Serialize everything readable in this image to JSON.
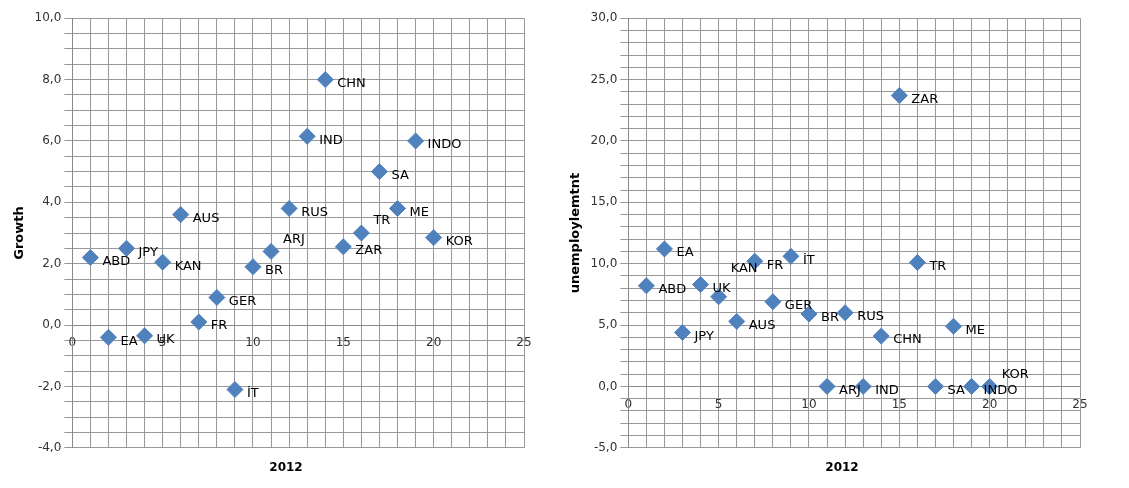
{
  "chart_data": [
    {
      "type": "scatter",
      "xlabel": "2012",
      "ylabel": "Growth",
      "marker": "diamond",
      "grid": true,
      "legend": false,
      "x": [
        1,
        2,
        3,
        4,
        5,
        6,
        7,
        8,
        9,
        10,
        11,
        12,
        13,
        14,
        15,
        16,
        17,
        18,
        19,
        20
      ],
      "series": [
        {
          "color": "#4f81bd",
          "values": [
            2.2,
            -0.4,
            2.5,
            -0.35,
            2.05,
            3.6,
            0.1,
            0.9,
            -2.1,
            1.9,
            2.4,
            3.8,
            6.15,
            8.0,
            2.55,
            3.0,
            5.0,
            3.8,
            6.0,
            2.85
          ]
        }
      ],
      "xlim": [
        0,
        25
      ],
      "xticks": [
        0,
        {
          "value": 1,
          "label": null
        },
        {
          "value": 2,
          "label": null
        },
        {
          "value": 3,
          "label": null
        },
        {
          "value": 4,
          "label": null
        },
        5,
        {
          "value": 6,
          "label": null
        },
        {
          "value": 7,
          "label": null
        },
        {
          "value": 8,
          "label": null
        },
        {
          "value": 9,
          "label": null
        },
        10,
        {
          "value": 11,
          "label": null
        },
        {
          "value": 12,
          "label": null
        },
        {
          "value": 13,
          "label": null
        },
        {
          "value": 14,
          "label": null
        },
        15,
        {
          "value": 16,
          "label": null
        },
        {
          "value": 17,
          "label": null
        },
        {
          "value": 18,
          "label": null
        },
        {
          "value": 19,
          "label": null
        },
        20,
        {
          "value": 21,
          "label": null
        },
        {
          "value": 22,
          "label": null
        },
        {
          "value": 23,
          "label": null
        },
        {
          "value": 24,
          "label": null
        },
        25
      ],
      "ylim": [
        -4,
        10
      ],
      "yticks": [
        {
          "value": -4,
          "label": "-4,0"
        },
        {
          "value": -3.5,
          "label": null
        },
        {
          "value": -3,
          "label": null
        },
        {
          "value": -2.5,
          "label": null
        },
        {
          "value": -2,
          "label": "-2,0"
        },
        {
          "value": -1.5,
          "label": null
        },
        {
          "value": -1,
          "label": null
        },
        {
          "value": -0.5,
          "label": null
        },
        {
          "value": 0,
          "label": "0,0"
        },
        {
          "value": 0.5,
          "label": null
        },
        {
          "value": 1,
          "label": null
        },
        {
          "value": 1.5,
          "label": null
        },
        {
          "value": 2,
          "label": "2,0"
        },
        {
          "value": 2.5,
          "label": null
        },
        {
          "value": 3,
          "label": null
        },
        {
          "value": 3.5,
          "label": null
        },
        {
          "value": 4,
          "label": "4,0"
        },
        {
          "value": 4.5,
          "label": null
        },
        {
          "value": 5,
          "label": null
        },
        {
          "value": 5.5,
          "label": null
        },
        {
          "value": 6,
          "label": "6,0"
        },
        {
          "value": 6.5,
          "label": null
        },
        {
          "value": 7,
          "label": null
        },
        {
          "value": 7.5,
          "label": null
        },
        {
          "value": 8,
          "label": "8,0"
        },
        {
          "value": 8.5,
          "label": null
        },
        {
          "value": 9,
          "label": null
        },
        {
          "value": 9.5,
          "label": null
        },
        {
          "value": 10,
          "label": "10,0"
        }
      ],
      "annotations": [
        {
          "text": "ABD",
          "x": 1,
          "y": 2.2
        },
        {
          "text": "EA",
          "x": 2,
          "y": -0.4
        },
        {
          "text": "JPY",
          "x": 3,
          "y": 2.5
        },
        {
          "text": "UK",
          "x": 4,
          "y": -0.35
        },
        {
          "text": "KAN",
          "x": 5,
          "y": 2.05
        },
        {
          "text": "AUS",
          "x": 6,
          "y": 3.6
        },
        {
          "text": "FR",
          "x": 7,
          "y": 0.1
        },
        {
          "text": "GER",
          "x": 8,
          "y": 0.9
        },
        {
          "text": "İT",
          "x": 9,
          "y": -2.1
        },
        {
          "text": "BR",
          "x": 10,
          "y": 1.9
        },
        {
          "text": "ARJ",
          "x": 11,
          "y": 2.4
        },
        {
          "text": "RUS",
          "x": 12,
          "y": 3.8
        },
        {
          "text": "IND",
          "x": 13,
          "y": 6.15
        },
        {
          "text": "CHN",
          "x": 14,
          "y": 8.0
        },
        {
          "text": "ZAR",
          "x": 15,
          "y": 2.55
        },
        {
          "text": "TR",
          "x": 16,
          "y": 3.0
        },
        {
          "text": "SA",
          "x": 17,
          "y": 5.0
        },
        {
          "text": "ME",
          "x": 18,
          "y": 3.8
        },
        {
          "text": "INDO",
          "x": 19,
          "y": 6.0
        },
        {
          "text": "KOR",
          "x": 20,
          "y": 2.85
        }
      ]
    },
    {
      "type": "scatter",
      "xlabel": "2012",
      "ylabel": "unemploylemtnt",
      "marker": "diamond",
      "grid": true,
      "legend": false,
      "x": [
        1,
        2,
        3,
        4,
        5,
        6,
        7,
        8,
        9,
        10,
        11,
        12,
        13,
        14,
        15,
        16,
        17,
        18,
        19,
        20
      ],
      "series": [
        {
          "color": "#4f81bd",
          "values": [
            8.2,
            11.2,
            4.4,
            8.3,
            7.3,
            5.3,
            10.2,
            6.9,
            10.6,
            5.9,
            0.0,
            6.0,
            0.0,
            4.1,
            23.7,
            10.1,
            0.0,
            4.9,
            0.0,
            0.0
          ]
        }
      ],
      "xlim": [
        0,
        25
      ],
      "xticks": [
        0,
        {
          "value": 1,
          "label": null
        },
        {
          "value": 2,
          "label": null
        },
        {
          "value": 3,
          "label": null
        },
        {
          "value": 4,
          "label": null
        },
        5,
        {
          "value": 6,
          "label": null
        },
        {
          "value": 7,
          "label": null
        },
        {
          "value": 8,
          "label": null
        },
        {
          "value": 9,
          "label": null
        },
        10,
        {
          "value": 11,
          "label": null
        },
        {
          "value": 12,
          "label": null
        },
        {
          "value": 13,
          "label": null
        },
        {
          "value": 14,
          "label": null
        },
        15,
        {
          "value": 16,
          "label": null
        },
        {
          "value": 17,
          "label": null
        },
        {
          "value": 18,
          "label": null
        },
        {
          "value": 19,
          "label": null
        },
        20,
        {
          "value": 21,
          "label": null
        },
        {
          "value": 22,
          "label": null
        },
        {
          "value": 23,
          "label": null
        },
        {
          "value": 24,
          "label": null
        },
        25
      ],
      "ylim": [
        -5,
        30
      ],
      "yticks": [
        {
          "value": -5,
          "label": "-5,0"
        },
        {
          "value": -4,
          "label": null
        },
        {
          "value": -3,
          "label": null
        },
        {
          "value": -2,
          "label": null
        },
        {
          "value": -1,
          "label": null
        },
        {
          "value": 0,
          "label": "0,0"
        },
        {
          "value": 1,
          "label": null
        },
        {
          "value": 2,
          "label": null
        },
        {
          "value": 3,
          "label": null
        },
        {
          "value": 4,
          "label": null
        },
        {
          "value": 5,
          "label": "5,0"
        },
        {
          "value": 6,
          "label": null
        },
        {
          "value": 7,
          "label": null
        },
        {
          "value": 8,
          "label": null
        },
        {
          "value": 9,
          "label": null
        },
        {
          "value": 10,
          "label": "10,0"
        },
        {
          "value": 11,
          "label": null
        },
        {
          "value": 12,
          "label": null
        },
        {
          "value": 13,
          "label": null
        },
        {
          "value": 14,
          "label": null
        },
        {
          "value": 15,
          "label": "15,0"
        },
        {
          "value": 16,
          "label": null
        },
        {
          "value": 17,
          "label": null
        },
        {
          "value": 18,
          "label": null
        },
        {
          "value": 19,
          "label": null
        },
        {
          "value": 20,
          "label": "20,0"
        },
        {
          "value": 21,
          "label": null
        },
        {
          "value": 22,
          "label": null
        },
        {
          "value": 23,
          "label": null
        },
        {
          "value": 24,
          "label": null
        },
        {
          "value": 25,
          "label": "25,0"
        },
        {
          "value": 26,
          "label": null
        },
        {
          "value": 27,
          "label": null
        },
        {
          "value": 28,
          "label": null
        },
        {
          "value": 29,
          "label": null
        },
        {
          "value": 30,
          "label": "30,0"
        }
      ],
      "annotations": [
        {
          "text": "ABD",
          "x": 1,
          "y": 8.2
        },
        {
          "text": "EA",
          "x": 2,
          "y": 11.2
        },
        {
          "text": "JPY",
          "x": 3,
          "y": 4.4
        },
        {
          "text": "UK",
          "x": 4,
          "y": 8.3
        },
        {
          "text": "KAN",
          "x": 5,
          "y": 7.3
        },
        {
          "text": "AUS",
          "x": 6,
          "y": 5.3
        },
        {
          "text": "FR",
          "x": 7,
          "y": 10.2
        },
        {
          "text": "GER",
          "x": 8,
          "y": 6.9
        },
        {
          "text": "İT",
          "x": 9,
          "y": 10.6
        },
        {
          "text": "BR",
          "x": 10,
          "y": 5.9
        },
        {
          "text": "ARJ",
          "x": 11,
          "y": 0.0
        },
        {
          "text": "RUS",
          "x": 12,
          "y": 6.0
        },
        {
          "text": "IND",
          "x": 13,
          "y": 0.0
        },
        {
          "text": "CHN",
          "x": 14,
          "y": 4.1
        },
        {
          "text": "ZAR",
          "x": 15,
          "y": 23.7
        },
        {
          "text": "TR",
          "x": 16,
          "y": 10.1
        },
        {
          "text": "SA",
          "x": 17,
          "y": 0.0
        },
        {
          "text": "ME",
          "x": 18,
          "y": 4.9
        },
        {
          "text": "INDO",
          "x": 19,
          "y": 0.0
        },
        {
          "text": "KOR",
          "x": 20,
          "y": 0.0
        }
      ]
    }
  ]
}
